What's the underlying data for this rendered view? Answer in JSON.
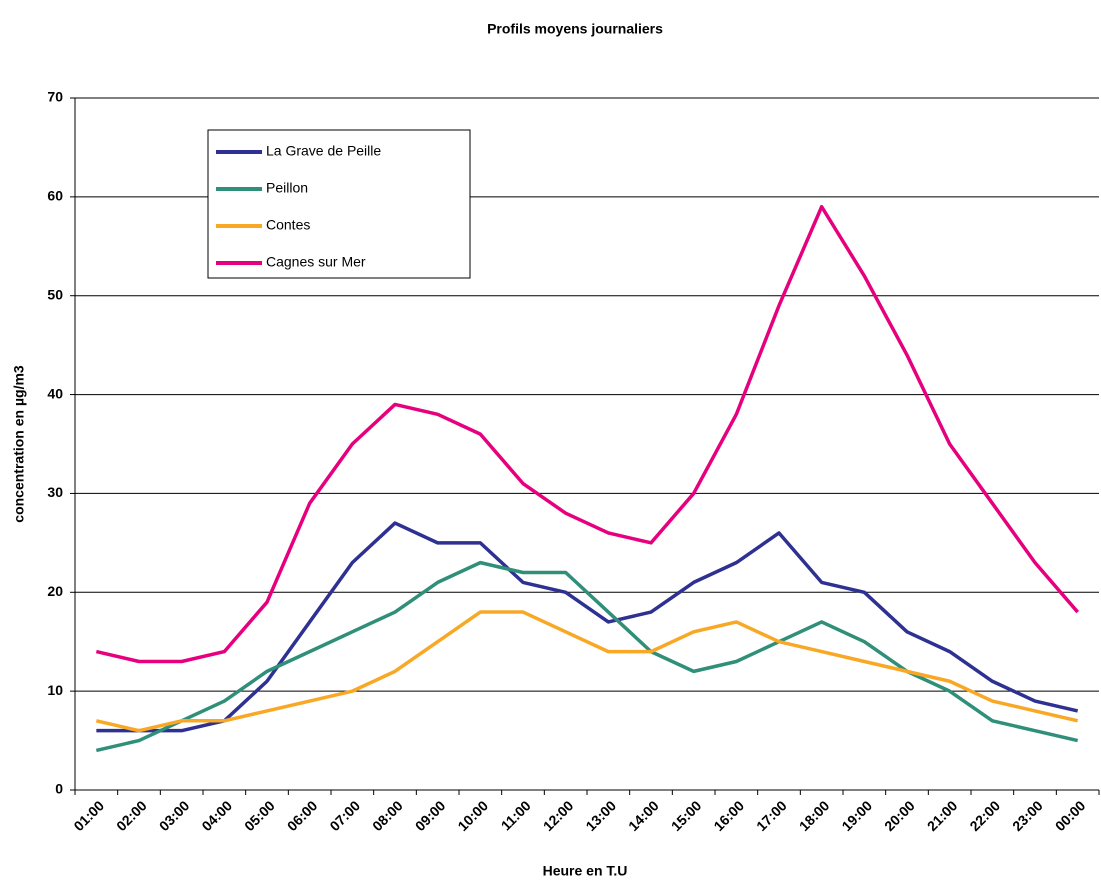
{
  "chart_data": {
    "type": "line",
    "title": "Profils moyens journaliers",
    "x_label": "Heure en T.U",
    "y_label": "concentration en µg/m3",
    "categories": [
      "01:00",
      "02:00",
      "03:00",
      "04:00",
      "05:00",
      "06:00",
      "07:00",
      "08:00",
      "09:00",
      "10:00",
      "11:00",
      "12:00",
      "13:00",
      "14:00",
      "15:00",
      "16:00",
      "17:00",
      "18:00",
      "19:00",
      "20:00",
      "21:00",
      "22:00",
      "23:00",
      "00:00"
    ],
    "series": [
      {
        "name": "La Grave de Peille",
        "color": "#2e3192",
        "values": [
          6,
          6,
          6,
          7,
          11,
          17,
          23,
          27,
          25,
          25,
          21,
          20,
          17,
          18,
          21,
          23,
          26,
          21,
          20,
          16,
          14,
          11,
          9,
          8
        ]
      },
      {
        "name": "Peillon",
        "color": "#2f8f78",
        "values": [
          4,
          5,
          7,
          9,
          12,
          14,
          16,
          18,
          21,
          23,
          22,
          22,
          18,
          14,
          12,
          13,
          15,
          17,
          15,
          12,
          10,
          7,
          6,
          5
        ]
      },
      {
        "name": "Contes",
        "color": "#f9a825",
        "values": [
          7,
          6,
          7,
          7,
          8,
          9,
          10,
          12,
          15,
          18,
          18,
          16,
          14,
          14,
          16,
          17,
          15,
          14,
          13,
          12,
          11,
          9,
          8,
          7
        ]
      },
      {
        "name": "Cagnes sur Mer",
        "color": "#e6007e",
        "values": [
          14,
          13,
          13,
          14,
          19,
          29,
          35,
          39,
          38,
          36,
          31,
          28,
          26,
          25,
          30,
          38,
          49,
          59,
          52,
          44,
          35,
          29,
          23,
          18
        ]
      }
    ],
    "ylim": [
      0,
      70
    ],
    "yticks": [
      0,
      10,
      20,
      30,
      40,
      50,
      60,
      70
    ],
    "grid": true,
    "legend": "upper left"
  }
}
